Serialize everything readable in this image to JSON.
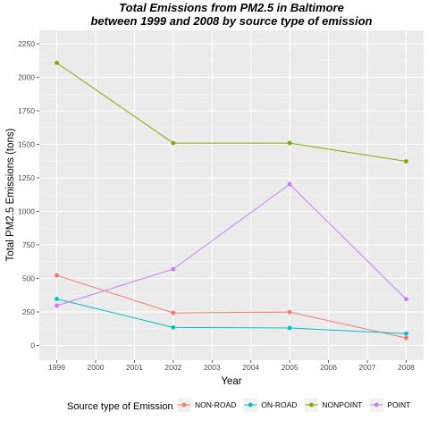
{
  "chart_data": {
    "type": "line",
    "title": "Total Emissions from PM2.5 in Baltimore",
    "subtitle": "between 1999 and 2008 by source type of emission",
    "xlabel": "Year",
    "ylabel": "Total PM2.5 Emissions (tons)",
    "x": [
      1999,
      2002,
      2005,
      2008
    ],
    "xlim": [
      1998.55,
      2008.45
    ],
    "ylim": [
      -110,
      2350
    ],
    "x_ticks": [
      1999,
      2000,
      2001,
      2002,
      2003,
      2004,
      2005,
      2006,
      2007,
      2008
    ],
    "y_ticks": [
      0,
      250,
      500,
      750,
      1000,
      1250,
      1500,
      1750,
      2000,
      2250
    ],
    "grid": true,
    "legend_title": "Source type of Emission",
    "legend_position": "bottom",
    "series": [
      {
        "name": "NON-ROAD",
        "color": "#F8766D",
        "values": [
          522.94,
          242.63,
          248.93,
          55.82
        ]
      },
      {
        "name": "ON-ROAD",
        "color": "#00BFC4",
        "values": [
          346.82,
          134.31,
          130.43,
          88.28
        ]
      },
      {
        "name": "NONPOINT",
        "color": "#7CAE00",
        "values": [
          2107.63,
          1509.5,
          1509.5,
          1373.21
        ]
      },
      {
        "name": "POINT",
        "color": "#C77CFF",
        "values": [
          296.8,
          569.26,
          1202.49,
          344.98
        ]
      }
    ]
  }
}
